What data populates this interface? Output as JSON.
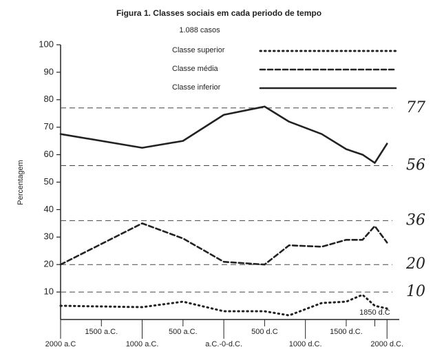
{
  "chart_data": {
    "type": "line",
    "title": "Figura 1. Classes sociais em cada periodo de tempo",
    "subtitle": "1.088 casos",
    "ylabel": "Percentagem",
    "x": [
      -2000,
      -1000,
      -500,
      0,
      500,
      800,
      1200,
      1500,
      1700,
      1850,
      2000
    ],
    "series": [
      {
        "name": "Classe superior",
        "color": "#222",
        "style": "dotted",
        "values": [
          5,
          4.5,
          6.5,
          3,
          3,
          1.5,
          6,
          6.5,
          9,
          5,
          4
        ]
      },
      {
        "name": "Classe média",
        "color": "#222",
        "style": "dashed",
        "values": [
          20,
          35,
          29.5,
          21,
          20,
          27,
          26.5,
          29,
          29,
          34,
          28
        ]
      },
      {
        "name": "Classe inferior",
        "color": "#222",
        "style": "solid",
        "values": [
          67.5,
          62.5,
          65,
          74.5,
          77.5,
          72,
          67.5,
          62,
          60,
          57,
          64
        ]
      }
    ],
    "reference_lines": [
      {
        "value": 77,
        "label": "77"
      },
      {
        "value": 56,
        "label": "56"
      },
      {
        "value": 36,
        "label": "36"
      },
      {
        "value": 20,
        "label": "20"
      },
      {
        "value": 10,
        "label": "10"
      }
    ],
    "xlim": [
      -2000,
      2150
    ],
    "xticks": [
      {
        "value": -2000,
        "label": "2000 a.C"
      },
      {
        "value": -1500,
        "label": "1500 a.C."
      },
      {
        "value": -1000,
        "label": "1000 a.C."
      },
      {
        "value": -500,
        "label": "500 a.C."
      },
      {
        "value": 0,
        "label": "a.C.-0-d.C."
      },
      {
        "value": 500,
        "label": "500 d.C"
      },
      {
        "value": 1000,
        "label": "1000 d.C."
      },
      {
        "value": 1500,
        "label": "1500 d.C."
      },
      {
        "value": 1850,
        "label": "1850 d.C"
      },
      {
        "value": 2000,
        "label": "2000 d.C."
      }
    ],
    "ylim": [
      0,
      100
    ],
    "yticks": [
      10,
      20,
      30,
      40,
      50,
      60,
      70,
      80,
      90,
      100
    ]
  }
}
